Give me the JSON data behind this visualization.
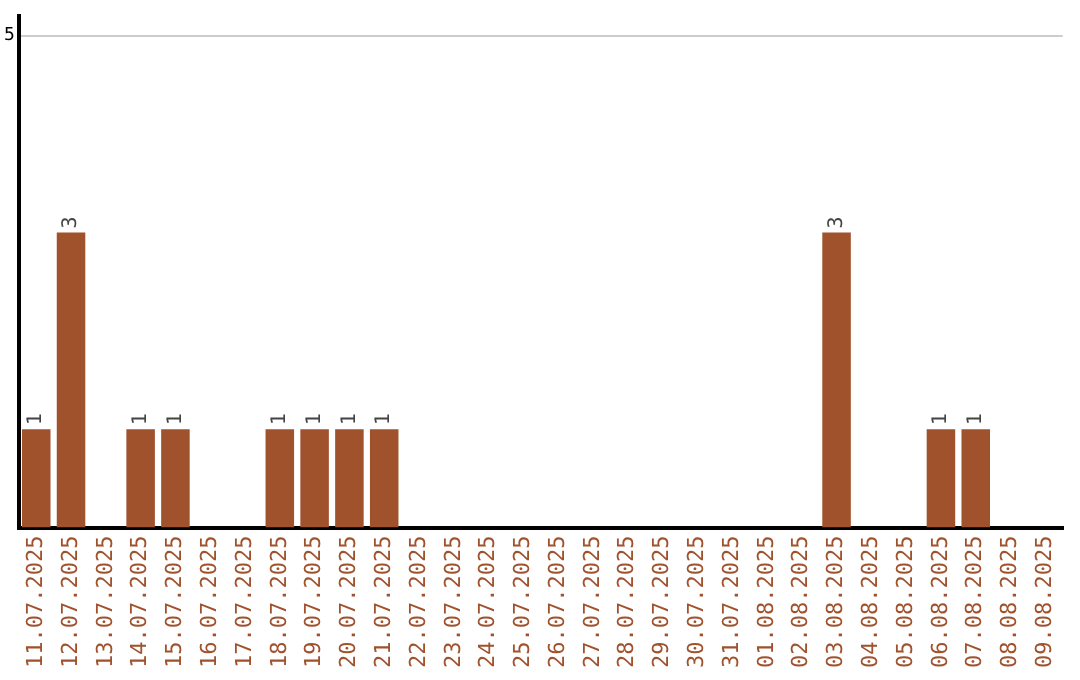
{
  "chart_data": {
    "type": "bar",
    "categories": [
      "11.07.2025",
      "12.07.2025",
      "13.07.2025",
      "14.07.2025",
      "15.07.2025",
      "16.07.2025",
      "17.07.2025",
      "18.07.2025",
      "19.07.2025",
      "20.07.2025",
      "21.07.2025",
      "22.07.2025",
      "23.07.2025",
      "24.07.2025",
      "25.07.2025",
      "26.07.2025",
      "27.07.2025",
      "28.07.2025",
      "29.07.2025",
      "30.07.2025",
      "31.07.2025",
      "01.08.2025",
      "02.08.2025",
      "03.08.2025",
      "04.08.2025",
      "05.08.2025",
      "06.08.2025",
      "07.08.2025",
      "08.08.2025",
      "09.08.2025"
    ],
    "values": [
      1,
      3,
      0,
      1,
      1,
      0,
      0,
      1,
      1,
      1,
      1,
      0,
      0,
      0,
      0,
      0,
      0,
      0,
      0,
      0,
      0,
      0,
      0,
      3,
      0,
      0,
      1,
      1,
      0,
      0
    ],
    "value_labels": [
      "1",
      "3",
      null,
      "1",
      "1",
      null,
      null,
      "1",
      "1",
      "1",
      "1",
      null,
      null,
      null,
      null,
      null,
      null,
      null,
      null,
      null,
      null,
      null,
      null,
      "3",
      null,
      null,
      "1",
      "1",
      null,
      null
    ],
    "color": "#a0522d",
    "ylim": [
      0,
      5.2
    ],
    "yticks": [
      5
    ],
    "grid": "y",
    "legend": false
  }
}
